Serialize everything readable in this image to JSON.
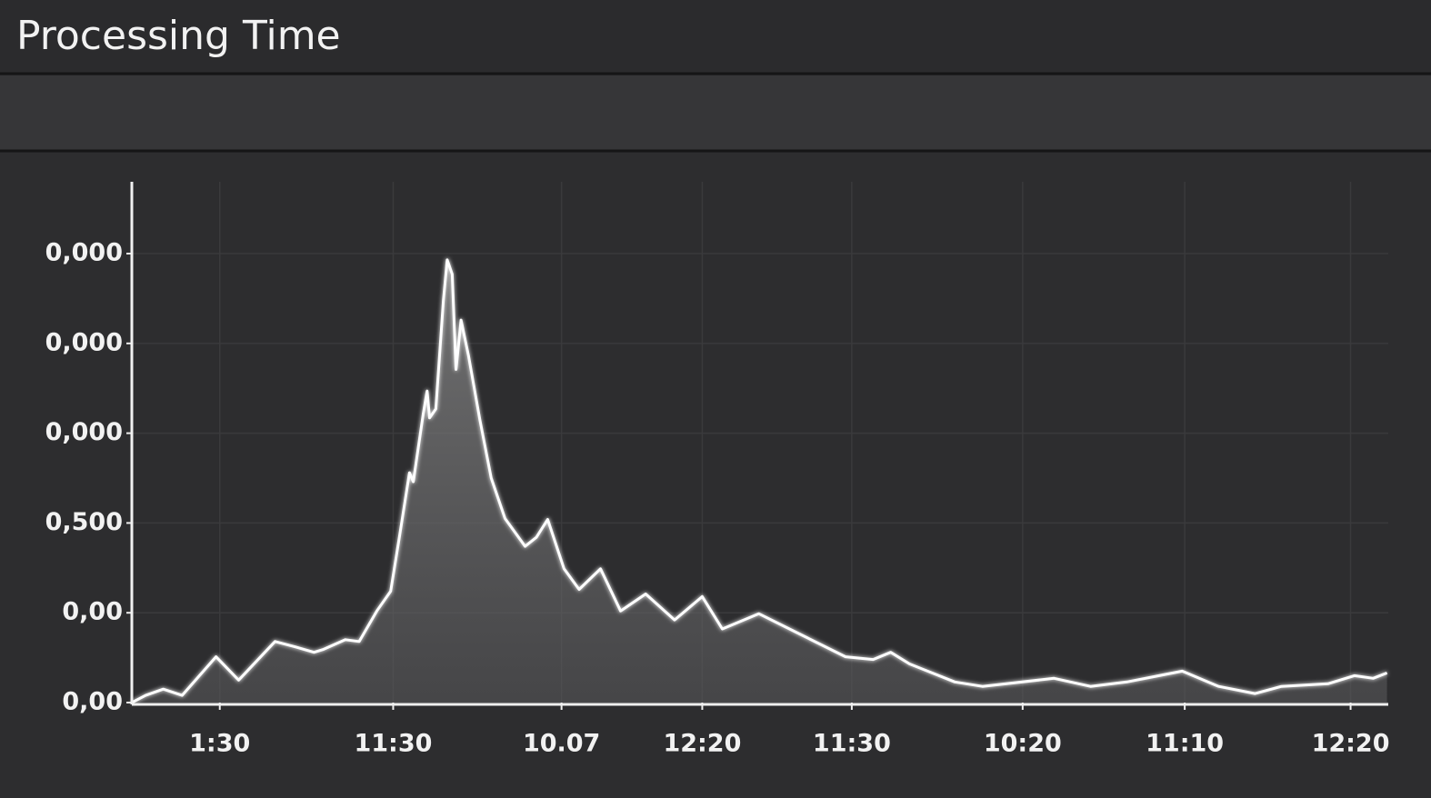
{
  "chart_data": {
    "type": "area",
    "title": "Processing Time",
    "color": "#ffffff",
    "grid": true,
    "xlim": [
      0,
      100
    ],
    "ylim": [
      0,
      5.8
    ],
    "xticks": [
      {
        "value": 7.0,
        "label": "1:30"
      },
      {
        "value": 20.8,
        "label": "11:30"
      },
      {
        "value": 34.2,
        "label": "10.07"
      },
      {
        "value": 45.4,
        "label": "12:20"
      },
      {
        "value": 57.3,
        "label": "11:30"
      },
      {
        "value": 70.9,
        "label": "10:20"
      },
      {
        "value": 83.8,
        "label": "11:10"
      },
      {
        "value": 97.0,
        "label": "12:20"
      }
    ],
    "yticks": [
      {
        "value": 0,
        "label": "0,00"
      },
      {
        "value": 1,
        "label": "0,00"
      },
      {
        "value": 2,
        "label": "0,500"
      },
      {
        "value": 3,
        "label": "0,000"
      },
      {
        "value": 4,
        "label": "0,000"
      },
      {
        "value": 5,
        "label": "0,000"
      }
    ],
    "x": [
      0,
      1.1,
      2.5,
      4.0,
      6.7,
      8.5,
      11.4,
      13.0,
      14.5,
      15.2,
      17.0,
      18.1,
      19.5,
      20.6,
      21.3,
      22.1,
      22.4,
      23.2,
      23.5,
      23.7,
      24.2,
      24.8,
      25.1,
      25.5,
      25.8,
      26.2,
      26.8,
      27.7,
      28.6,
      29.7,
      31.3,
      32.2,
      33.1,
      34.4,
      35.6,
      37.3,
      38.9,
      40.9,
      43.2,
      45.4,
      47.0,
      49.9,
      53.2,
      56.8,
      59.0,
      60.4,
      61.9,
      65.5,
      67.7,
      73.4,
      76.3,
      79.2,
      83.6,
      86.5,
      89.4,
      91.5,
      95.2,
      97.3,
      98.8,
      99.9
    ],
    "values": [
      0,
      0.08,
      0.15,
      0.08,
      0.51,
      0.25,
      0.68,
      0.62,
      0.56,
      0.59,
      0.7,
      0.68,
      1.02,
      1.24,
      1.85,
      2.56,
      2.46,
      3.22,
      3.47,
      3.17,
      3.27,
      4.48,
      4.93,
      4.77,
      3.71,
      4.26,
      3.86,
      3.15,
      2.5,
      2.05,
      1.74,
      1.84,
      2.04,
      1.49,
      1.26,
      1.49,
      1.02,
      1.21,
      0.92,
      1.18,
      0.82,
      0.99,
      0.76,
      0.51,
      0.48,
      0.56,
      0.43,
      0.23,
      0.18,
      0.27,
      0.18,
      0.23,
      0.35,
      0.18,
      0.1,
      0.18,
      0.21,
      0.3,
      0.27,
      0.33
    ]
  }
}
